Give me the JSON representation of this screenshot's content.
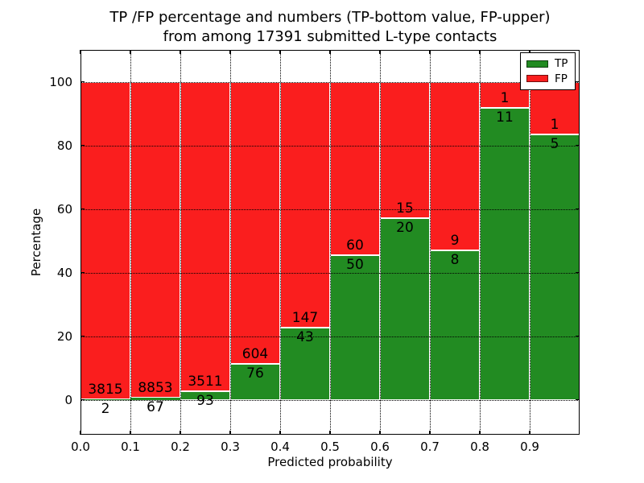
{
  "figure": {
    "title_line1": "TP /FP percentage and numbers (TP-bottom value, FP-upper)",
    "title_line2": "from among 17391 submitted L-type contacts",
    "xlabel": "Predicted probability",
    "ylabel": "Percentage"
  },
  "legend": {
    "position": "upper right",
    "items": [
      {
        "label": "TP",
        "color": "#228b22"
      },
      {
        "label": "FP",
        "color": "#fa1e1e"
      }
    ]
  },
  "chart_data": {
    "type": "bar",
    "stacked": true,
    "normalized": "each bar stacks to 100%",
    "title": "TP /FP percentage and numbers (TP-bottom value, FP-upper) from among 17391 submitted L-type contacts",
    "xlabel": "Predicted probability",
    "ylabel": "Percentage",
    "total_contacts": 17391,
    "bin_starts": [
      0.0,
      0.1,
      0.2,
      0.3,
      0.4,
      0.5,
      0.6,
      0.7,
      0.8,
      0.9
    ],
    "bin_width": 0.1,
    "categories": [
      "0.0-0.1",
      "0.1-0.2",
      "0.2-0.3",
      "0.3-0.4",
      "0.4-0.5",
      "0.5-0.6",
      "0.6-0.7",
      "0.7-0.8",
      "0.8-0.9",
      "0.9-1.0"
    ],
    "series": [
      {
        "name": "TP",
        "color": "#228b22",
        "counts": [
          2,
          67,
          93,
          76,
          43,
          50,
          20,
          8,
          11,
          5
        ]
      },
      {
        "name": "FP",
        "color": "#fa1e1e",
        "counts": [
          3815,
          8853,
          3511,
          604,
          147,
          60,
          15,
          9,
          1,
          1
        ]
      }
    ],
    "tp_percent": [
      0.05,
      0.75,
      2.58,
      11.18,
      22.63,
      45.45,
      57.14,
      47.06,
      91.67,
      83.33
    ],
    "x_tick_labels": [
      "0.0",
      "0.1",
      "0.2",
      "0.3",
      "0.4",
      "0.5",
      "0.6",
      "0.7",
      "0.8",
      "0.9"
    ],
    "y_tick_values": [
      0,
      20,
      40,
      60,
      80,
      100
    ],
    "xlim": [
      0.0,
      1.0
    ],
    "ylim": [
      -11,
      110
    ],
    "grid": true,
    "grid_linestyle": "dotted",
    "legend_position": "upper right",
    "colors": {
      "tp": "#228b22",
      "fp": "#fa1e1e",
      "background": "#ffffff",
      "text": "#000000"
    }
  }
}
